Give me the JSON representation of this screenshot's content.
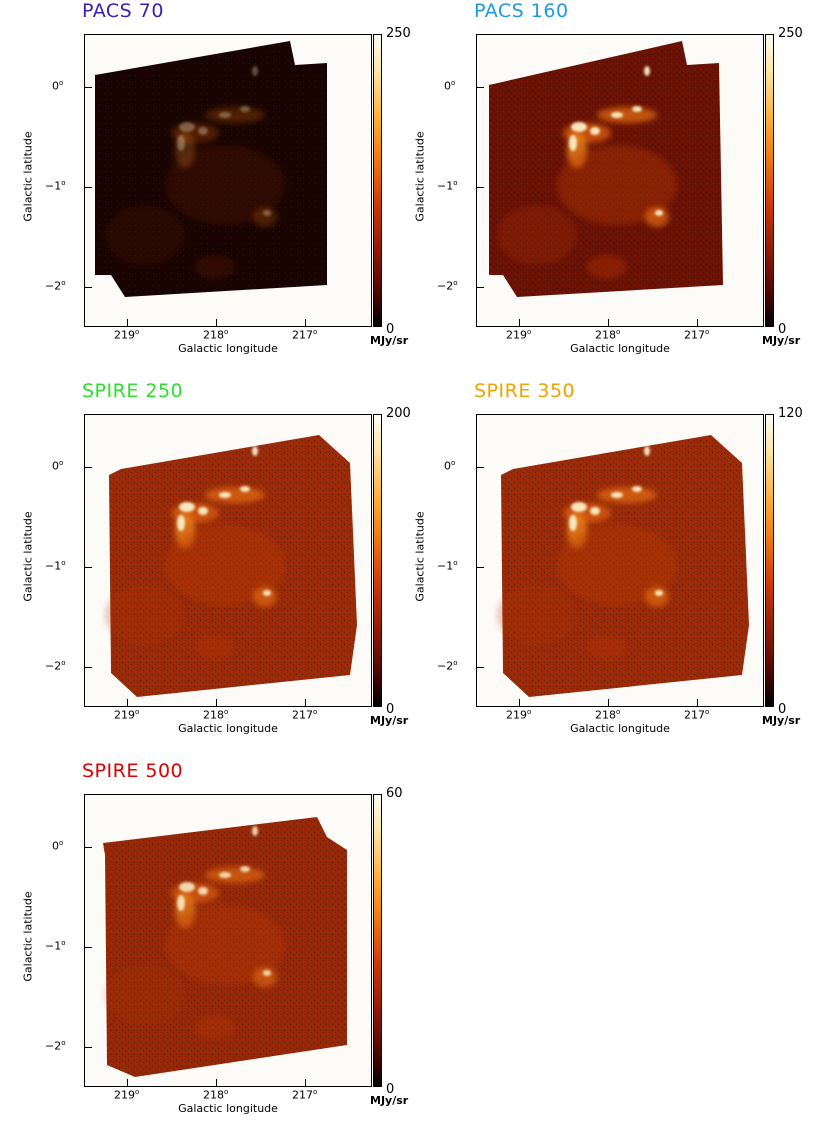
{
  "axes": {
    "xlabel": "Galactic longitude",
    "ylabel": "Galactic latitude",
    "x_ticks": [
      "219",
      "218",
      "217"
    ],
    "y_ticks": [
      "0",
      "−1",
      "−2"
    ],
    "degree_symbol": "o",
    "unit": "MJy/sr",
    "colorbar_min": "0"
  },
  "panels": [
    {
      "title": "PACS 70",
      "title_color": "#3a1fb0",
      "colorbar_max": "250"
    },
    {
      "title": "PACS 160",
      "title_color": "#1c9be0",
      "colorbar_max": "250"
    },
    {
      "title": "SPIRE 250",
      "title_color": "#2ee02e",
      "colorbar_max": "200"
    },
    {
      "title": "SPIRE 350",
      "title_color": "#f0a400",
      "colorbar_max": "120"
    },
    {
      "title": "SPIRE 500",
      "title_color": "#e00000",
      "colorbar_max": "60"
    }
  ],
  "chart_data": {
    "type": "heatmap",
    "x_range_deg": [
      219.4,
      216.2
    ],
    "y_range_deg": [
      -2.5,
      0.5
    ],
    "colormap": "black-red-orange-white",
    "panels": [
      {
        "name": "PACS 70",
        "cmin": 0,
        "cmax": 250
      },
      {
        "name": "PACS 160",
        "cmin": 0,
        "cmax": 250
      },
      {
        "name": "SPIRE 250",
        "cmin": 0,
        "cmax": 200
      },
      {
        "name": "SPIRE 350",
        "cmin": 0,
        "cmax": 120
      },
      {
        "name": "SPIRE 500",
        "cmin": 0,
        "cmax": 60
      }
    ]
  }
}
